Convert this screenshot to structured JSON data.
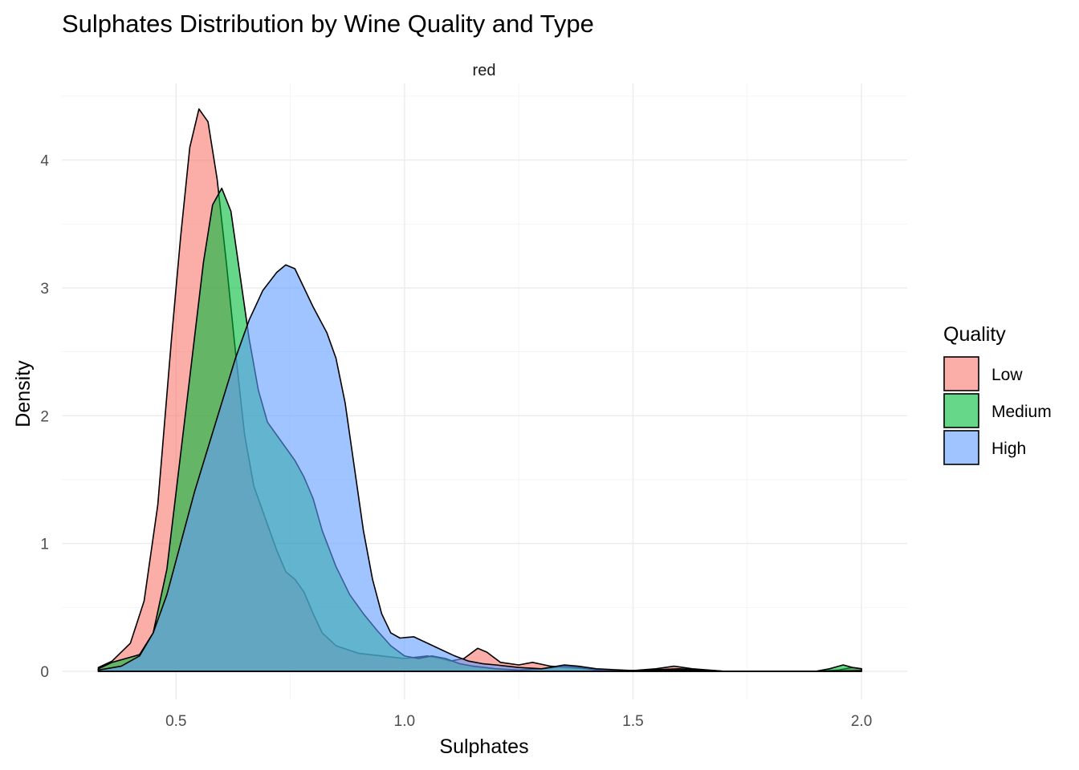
{
  "chart_data": {
    "type": "area",
    "title": "Sulphates Distribution by Wine Quality and Type",
    "facet": "red",
    "xlabel": "Sulphates",
    "ylabel": "Density",
    "xlim": [
      0.25,
      2.1
    ],
    "ylim": [
      -0.22,
      4.6
    ],
    "x_ticks": [
      0.5,
      1.0,
      1.5,
      2.0
    ],
    "x_tick_labels": [
      "0.5",
      "1.0",
      "1.5",
      "2.0"
    ],
    "y_ticks": [
      0,
      1,
      2,
      3,
      4
    ],
    "y_tick_labels": [
      "0",
      "1",
      "2",
      "3",
      "4"
    ],
    "grid": true,
    "legend": {
      "title": "Quality",
      "position": "right"
    },
    "series": [
      {
        "name": "Low",
        "color": "#F8766D",
        "opacity": 0.6,
        "points": [
          [
            0.33,
            0.03
          ],
          [
            0.36,
            0.08
          ],
          [
            0.4,
            0.22
          ],
          [
            0.43,
            0.55
          ],
          [
            0.46,
            1.3
          ],
          [
            0.49,
            2.6
          ],
          [
            0.51,
            3.4
          ],
          [
            0.53,
            4.1
          ],
          [
            0.55,
            4.4
          ],
          [
            0.57,
            4.3
          ],
          [
            0.59,
            3.85
          ],
          [
            0.61,
            3.2
          ],
          [
            0.63,
            2.5
          ],
          [
            0.65,
            1.85
          ],
          [
            0.67,
            1.45
          ],
          [
            0.7,
            1.15
          ],
          [
            0.72,
            0.95
          ],
          [
            0.74,
            0.78
          ],
          [
            0.76,
            0.72
          ],
          [
            0.78,
            0.62
          ],
          [
            0.8,
            0.45
          ],
          [
            0.82,
            0.3
          ],
          [
            0.85,
            0.2
          ],
          [
            0.9,
            0.14
          ],
          [
            0.95,
            0.12
          ],
          [
            1.0,
            0.1
          ],
          [
            1.05,
            0.12
          ],
          [
            1.08,
            0.1
          ],
          [
            1.1,
            0.08
          ],
          [
            1.13,
            0.1
          ],
          [
            1.16,
            0.18
          ],
          [
            1.18,
            0.15
          ],
          [
            1.21,
            0.07
          ],
          [
            1.25,
            0.05
          ],
          [
            1.28,
            0.07
          ],
          [
            1.32,
            0.04
          ],
          [
            1.35,
            0.03
          ],
          [
            1.4,
            0.02
          ],
          [
            1.45,
            0.01
          ],
          [
            1.5,
            0.005
          ],
          [
            1.55,
            0.02
          ],
          [
            1.59,
            0.04
          ],
          [
            1.63,
            0.02
          ],
          [
            1.7,
            0.0
          ],
          [
            1.8,
            0.0
          ],
          [
            1.9,
            0.0
          ],
          [
            1.95,
            0.01
          ],
          [
            1.98,
            0.03
          ],
          [
            2.0,
            0.02
          ]
        ]
      },
      {
        "name": "Medium",
        "color": "#00BA38",
        "opacity": 0.6,
        "points": [
          [
            0.33,
            0.02
          ],
          [
            0.36,
            0.07
          ],
          [
            0.39,
            0.1
          ],
          [
            0.42,
            0.13
          ],
          [
            0.45,
            0.3
          ],
          [
            0.48,
            0.8
          ],
          [
            0.5,
            1.4
          ],
          [
            0.53,
            2.3
          ],
          [
            0.56,
            3.2
          ],
          [
            0.58,
            3.65
          ],
          [
            0.6,
            3.78
          ],
          [
            0.62,
            3.6
          ],
          [
            0.64,
            3.1
          ],
          [
            0.66,
            2.6
          ],
          [
            0.68,
            2.2
          ],
          [
            0.7,
            1.95
          ],
          [
            0.73,
            1.8
          ],
          [
            0.76,
            1.65
          ],
          [
            0.78,
            1.52
          ],
          [
            0.8,
            1.35
          ],
          [
            0.82,
            1.1
          ],
          [
            0.85,
            0.82
          ],
          [
            0.88,
            0.6
          ],
          [
            0.91,
            0.45
          ],
          [
            0.94,
            0.32
          ],
          [
            0.97,
            0.2
          ],
          [
            1.0,
            0.12
          ],
          [
            1.03,
            0.1
          ],
          [
            1.06,
            0.12
          ],
          [
            1.09,
            0.1
          ],
          [
            1.12,
            0.06
          ],
          [
            1.15,
            0.04
          ],
          [
            1.2,
            0.02
          ],
          [
            1.25,
            0.01
          ],
          [
            1.3,
            0.02
          ],
          [
            1.35,
            0.04
          ],
          [
            1.38,
            0.03
          ],
          [
            1.42,
            0.01
          ],
          [
            1.5,
            0.005
          ],
          [
            1.6,
            0.02
          ],
          [
            1.7,
            0.0
          ],
          [
            1.8,
            0.0
          ],
          [
            1.9,
            0.0
          ],
          [
            1.93,
            0.02
          ],
          [
            1.96,
            0.05
          ],
          [
            1.98,
            0.03
          ],
          [
            2.0,
            0.02
          ]
        ]
      },
      {
        "name": "High",
        "color": "#619CFF",
        "opacity": 0.6,
        "points": [
          [
            0.33,
            0.01
          ],
          [
            0.38,
            0.04
          ],
          [
            0.42,
            0.12
          ],
          [
            0.45,
            0.3
          ],
          [
            0.48,
            0.6
          ],
          [
            0.51,
            1.0
          ],
          [
            0.54,
            1.4
          ],
          [
            0.57,
            1.75
          ],
          [
            0.6,
            2.1
          ],
          [
            0.63,
            2.45
          ],
          [
            0.66,
            2.75
          ],
          [
            0.69,
            2.98
          ],
          [
            0.72,
            3.12
          ],
          [
            0.74,
            3.18
          ],
          [
            0.76,
            3.15
          ],
          [
            0.78,
            3.0
          ],
          [
            0.8,
            2.85
          ],
          [
            0.83,
            2.65
          ],
          [
            0.85,
            2.45
          ],
          [
            0.87,
            2.1
          ],
          [
            0.89,
            1.6
          ],
          [
            0.91,
            1.1
          ],
          [
            0.93,
            0.72
          ],
          [
            0.95,
            0.45
          ],
          [
            0.97,
            0.3
          ],
          [
            0.99,
            0.26
          ],
          [
            1.02,
            0.27
          ],
          [
            1.05,
            0.22
          ],
          [
            1.08,
            0.17
          ],
          [
            1.11,
            0.12
          ],
          [
            1.14,
            0.08
          ],
          [
            1.17,
            0.06
          ],
          [
            1.2,
            0.05
          ],
          [
            1.25,
            0.03
          ],
          [
            1.3,
            0.02
          ],
          [
            1.35,
            0.05
          ],
          [
            1.38,
            0.04
          ],
          [
            1.42,
            0.02
          ],
          [
            1.5,
            0.005
          ],
          [
            1.55,
            0.005
          ],
          [
            1.6,
            0.01
          ],
          [
            1.7,
            0.0
          ],
          [
            1.8,
            0.0
          ],
          [
            1.9,
            0.0
          ],
          [
            2.0,
            0.005
          ]
        ]
      }
    ]
  }
}
